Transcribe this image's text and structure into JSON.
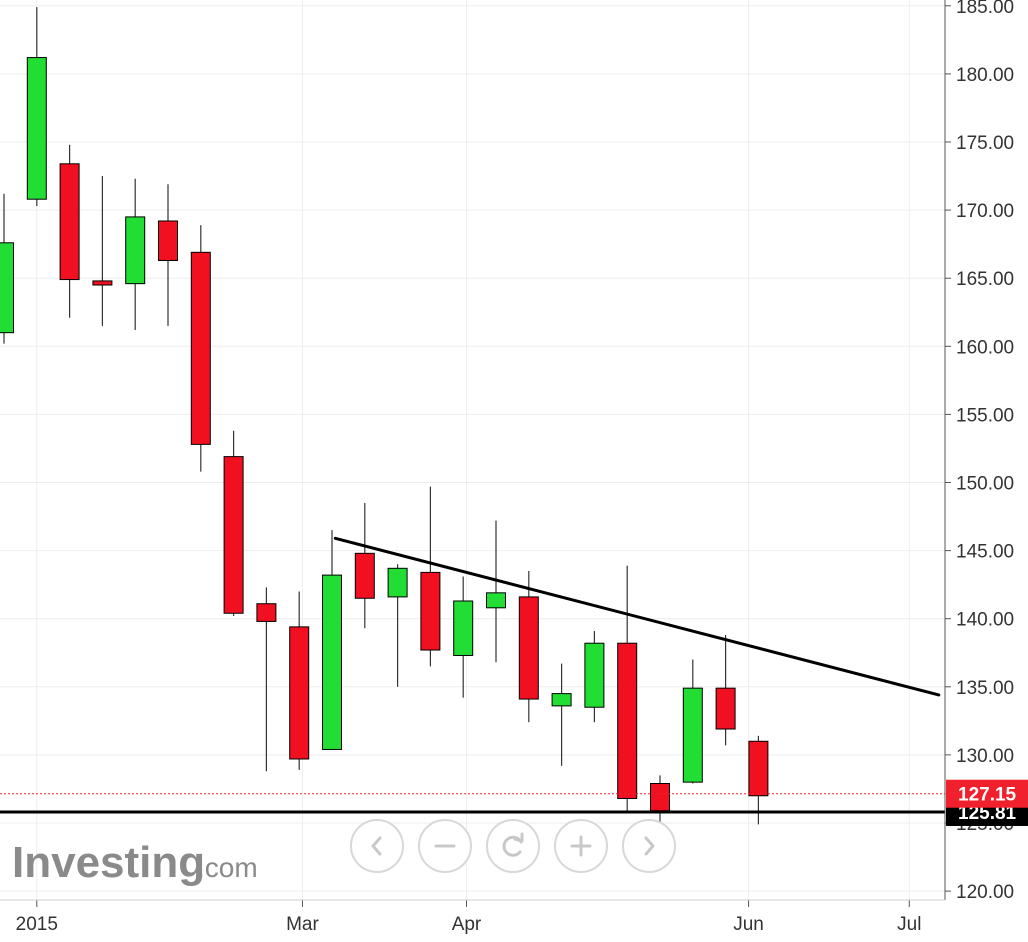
{
  "chart_data": {
    "type": "candlestick",
    "y_axis": {
      "range": [
        119.5,
        186.5
      ],
      "ticks": [
        120,
        125,
        130,
        135,
        140,
        145,
        150,
        155,
        160,
        165,
        170,
        175,
        180,
        185
      ],
      "tick_labels": [
        "120.00",
        "125.00",
        "130.00",
        "135.00",
        "140.00",
        "145.00",
        "150.00",
        "155.00",
        "160.00",
        "165.00",
        "170.00",
        "175.00",
        "180.00",
        "185.00"
      ],
      "side": "right"
    },
    "x_axis": {
      "labels": [
        {
          "text": "2015",
          "week": 1.0
        },
        {
          "text": "Mar",
          "week": 9.1
        },
        {
          "text": "Apr",
          "week": 14.1
        },
        {
          "text": "Jun",
          "week": 22.7
        },
        {
          "text": "Jul",
          "week": 27.6
        }
      ]
    },
    "candles": [
      {
        "week": 0,
        "open": 161.0,
        "high": 171.2,
        "low": 160.2,
        "close": 167.6
      },
      {
        "week": 1,
        "open": 170.8,
        "high": 184.9,
        "low": 170.3,
        "close": 181.2
      },
      {
        "week": 2,
        "open": 173.4,
        "high": 174.8,
        "low": 162.1,
        "close": 164.9
      },
      {
        "week": 3,
        "open": 164.8,
        "high": 172.5,
        "low": 161.5,
        "close": 164.5
      },
      {
        "week": 4,
        "open": 164.6,
        "high": 172.3,
        "low": 161.2,
        "close": 169.5
      },
      {
        "week": 5,
        "open": 169.2,
        "high": 171.9,
        "low": 161.5,
        "close": 166.3
      },
      {
        "week": 6,
        "open": 166.9,
        "high": 168.9,
        "low": 150.8,
        "close": 152.8
      },
      {
        "week": 7,
        "open": 151.9,
        "high": 153.8,
        "low": 140.2,
        "close": 140.4
      },
      {
        "week": 8,
        "open": 141.1,
        "high": 142.3,
        "low": 128.8,
        "close": 139.8
      },
      {
        "week": 9,
        "open": 139.4,
        "high": 142.0,
        "low": 128.9,
        "close": 129.7
      },
      {
        "week": 10,
        "open": 130.4,
        "high": 146.5,
        "low": 130.4,
        "close": 143.2
      },
      {
        "week": 11,
        "open": 144.8,
        "high": 148.5,
        "low": 139.3,
        "close": 141.5
      },
      {
        "week": 12,
        "open": 141.6,
        "high": 144.0,
        "low": 135.0,
        "close": 143.7
      },
      {
        "week": 13,
        "open": 143.4,
        "high": 149.7,
        "low": 136.5,
        "close": 137.7
      },
      {
        "week": 14,
        "open": 137.3,
        "high": 143.1,
        "low": 134.2,
        "close": 141.3
      },
      {
        "week": 15,
        "open": 140.8,
        "high": 147.2,
        "low": 136.8,
        "close": 141.9
      },
      {
        "week": 16,
        "open": 141.6,
        "high": 143.5,
        "low": 132.4,
        "close": 134.1
      },
      {
        "week": 17,
        "open": 133.6,
        "high": 136.7,
        "low": 129.2,
        "close": 134.5
      },
      {
        "week": 18,
        "open": 133.5,
        "high": 139.1,
        "low": 132.4,
        "close": 138.2
      },
      {
        "week": 19,
        "open": 138.2,
        "high": 143.9,
        "low": 125.9,
        "close": 126.8
      },
      {
        "week": 20,
        "open": 127.9,
        "high": 128.5,
        "low": 123.6,
        "close": 125.9
      },
      {
        "week": 21,
        "open": 128.0,
        "high": 137.0,
        "low": 127.9,
        "close": 134.9
      },
      {
        "week": 22,
        "open": 134.9,
        "high": 138.8,
        "low": 130.7,
        "close": 131.9
      },
      {
        "week": 23,
        "open": 131.0,
        "high": 131.4,
        "low": 124.9,
        "close": 127.0
      }
    ],
    "trendlines": [
      {
        "from": {
          "week": 10.1,
          "price": 145.9
        },
        "to": {
          "week": 28.5,
          "price": 134.4
        },
        "color": "#000000"
      }
    ],
    "horizontal_lines": [
      {
        "price": 125.81,
        "label": "125.81",
        "color": "#000000",
        "style": "solid"
      },
      {
        "price": 127.15,
        "label": "127.15",
        "color": "#f0202c",
        "style": "dotted"
      }
    ],
    "grid": true,
    "colors": {
      "up": "#22dd33",
      "down": "#f01020",
      "outline": "#000000",
      "grid": "#eeeeee",
      "axis": "#555555"
    }
  },
  "watermark": {
    "brand": "Investing",
    "suffix": ".com"
  },
  "navigation": {
    "buttons": [
      {
        "name": "scroll-left-button",
        "icon": "chevron-left-icon"
      },
      {
        "name": "zoom-out-button",
        "icon": "minus-icon"
      },
      {
        "name": "reset-button",
        "icon": "refresh-icon"
      },
      {
        "name": "zoom-in-button",
        "icon": "plus-icon"
      },
      {
        "name": "scroll-right-button",
        "icon": "chevron-right-icon"
      }
    ]
  }
}
